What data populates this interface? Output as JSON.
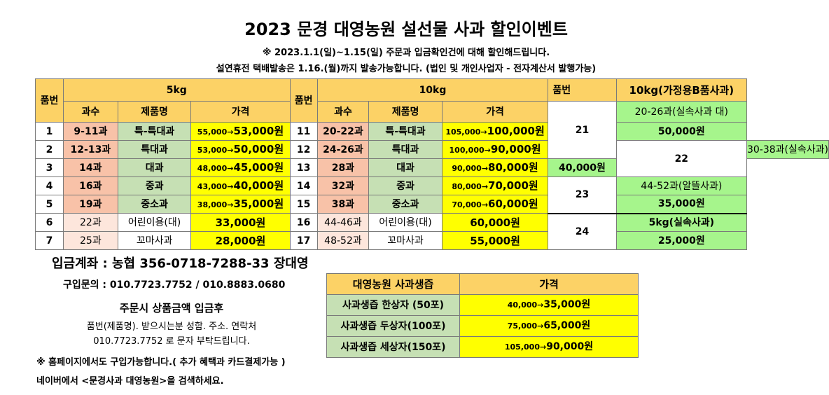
{
  "header": {
    "title": "2023 문경 대영농원 설선물 사과 할인이벤트",
    "line1": "※ 2023.1.1(일)~1.15(일) 주문과 입금확인건에 대해 할인해드립니다.",
    "line2": "설연휴전 택배발송은 1.16.(월)까지 발송가능합니다.   (법인 및 개인사업자 - 전자계산서 발행가능)"
  },
  "table": {
    "col_num": "품번",
    "group_5kg": "5kg",
    "group_10kg": "10kg",
    "col_num2": "품번",
    "group_home": "10kg(가정용B품사과)",
    "sub_count": "과수",
    "sub_name": "제품명",
    "sub_price": "가격",
    "rows": [
      {
        "n5": "1",
        "c5": "9-11과",
        "name5": "특-특대과",
        "was5": "55,000",
        "now5": "53,000원",
        "n10": "11",
        "c10": "20-22과",
        "name10": "특-특대과",
        "was10": "105,000",
        "now10": "100,000원"
      },
      {
        "n5": "2",
        "c5": "12-13과",
        "name5": "특대과",
        "was5": "53,000",
        "now5": "50,000원",
        "n10": "12",
        "c10": "24-26과",
        "name10": "특대과",
        "was10": "100,000",
        "now10": "90,000원"
      },
      {
        "n5": "3",
        "c5": "14과",
        "name5": "대과",
        "was5": "48,000",
        "now5": "45,000원",
        "n10": "13",
        "c10": "28과",
        "name10": "대과",
        "was10": "90,000",
        "now10": "80,000원"
      },
      {
        "n5": "4",
        "c5": "16과",
        "name5": "중과",
        "was5": "43,000",
        "now5": "40,000원",
        "n10": "14",
        "c10": "32과",
        "name10": "중과",
        "was10": "80,000",
        "now10": "70,000원"
      },
      {
        "n5": "5",
        "c5": "19과",
        "name5": "중소과",
        "was5": "38,000",
        "now5": "35,000원",
        "n10": "15",
        "c10": "38과",
        "name10": "중소과",
        "was10": "70,000",
        "now10": "60,000원"
      },
      {
        "n5": "6",
        "c5": "22과",
        "name5": "어린이용(대)",
        "now5": "33,000원",
        "n10": "16",
        "c10": "44-46과",
        "name10": "어린이용(대)",
        "now10": "60,000원"
      },
      {
        "n5": "7",
        "c5": "25과",
        "name5": "꼬마사과",
        "now5": "28,000원",
        "n10": "17",
        "c10": "48-52과",
        "name10": "꼬마사과",
        "now10": "55,000원"
      }
    ],
    "arrow": "→",
    "home": [
      {
        "num": "21",
        "desc": "20-26과(실속사과 대)",
        "price": "50,000원"
      },
      {
        "num": "22",
        "desc": "30-38과(실속사과)",
        "price": "40,000원"
      },
      {
        "num": "23",
        "desc": "44-52과(알뜰사과)",
        "price": "35,000원"
      },
      {
        "num": "24",
        "desc": "5kg(실속사과)",
        "price": "25,000원"
      }
    ]
  },
  "info": {
    "account": "입금계좌 : 농협 356-0718-7288-33 장대영",
    "contact": "구입문의 : 010.7723.7752 / 010.8883.0680",
    "order_title": "주문시 상품금액 입금후",
    "order_line1": "품번(제품명). 받으시는분 성함. 주소. 연락처",
    "order_line2": "010.7723.7752 로 문자 부탁드립니다.",
    "note1": "※ 홈페이지에서도 구입가능합니다.( 추가 혜택과 카드결제가능 )",
    "note2": "네이버에서 <문경사과 대영농원>을 검색하세요."
  },
  "juice": {
    "header_name": "대영농원 사과생즙",
    "header_price": "가격",
    "rows": [
      {
        "name": "사과생즙 한상자 (50포)",
        "was": "40,000",
        "now": "35,000원"
      },
      {
        "name": "사과생즙 두상자(100포)",
        "was": "75,000",
        "now": "65,000원"
      },
      {
        "name": "사과생즙 세상자(150포)",
        "was": "105,000",
        "now": "90,000원"
      }
    ]
  },
  "colors": {
    "header_orange": "#fcd266",
    "count_salmon": "#f8c2a8",
    "name_green": "#c6e0b4",
    "price_yellow": "#ffff00",
    "home_green": "#a6f58c"
  }
}
